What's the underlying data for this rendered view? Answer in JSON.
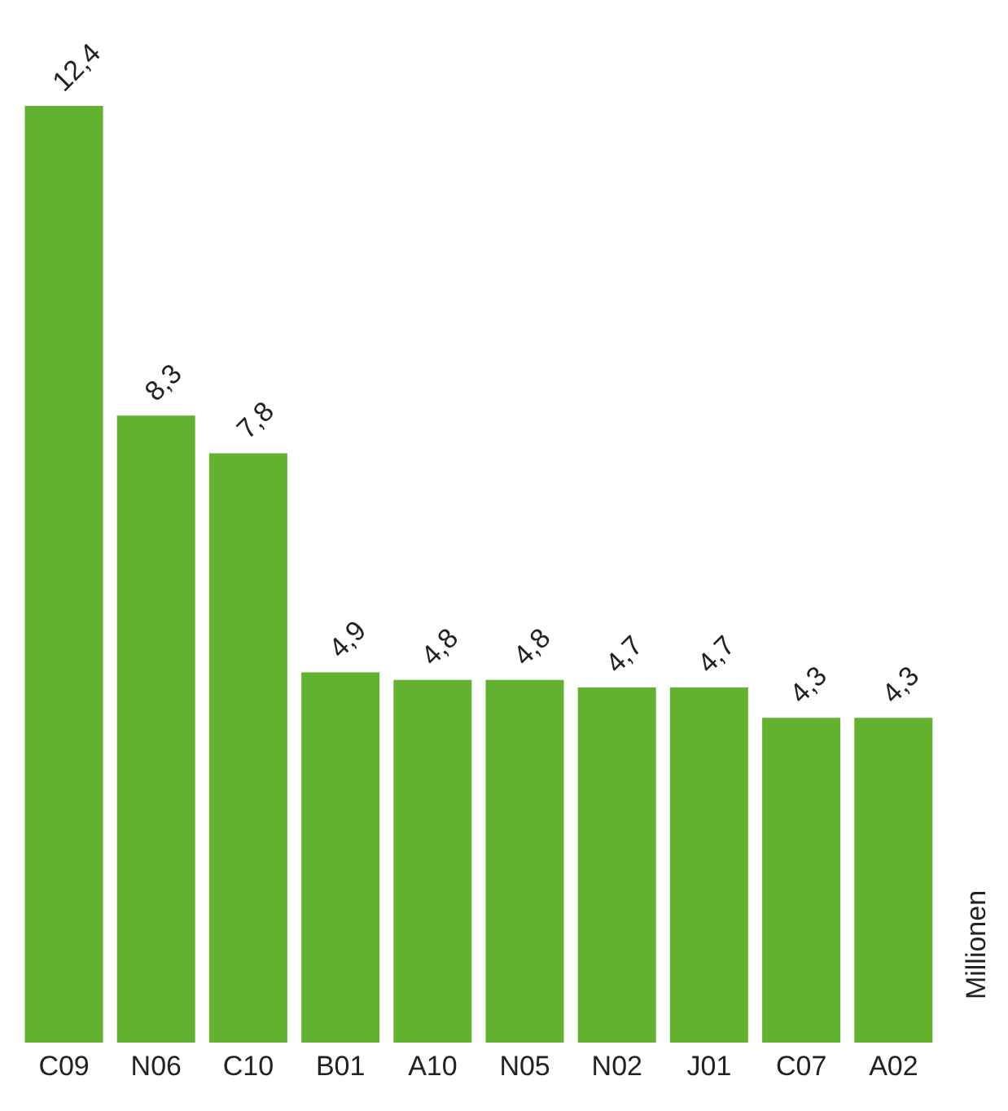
{
  "chart_data": {
    "type": "bar",
    "ylabel": "Millionen",
    "categories": [
      "C09",
      "N06",
      "C10",
      "B01",
      "A10",
      "N05",
      "N02",
      "J01",
      "C07",
      "A02"
    ],
    "values": [
      12.4,
      8.3,
      7.8,
      4.9,
      4.8,
      4.8,
      4.7,
      4.7,
      4.3,
      4.3
    ],
    "value_labels": [
      "12,4",
      "8,3",
      "7,8",
      "4,9",
      "4,8",
      "4,8",
      "4,7",
      "4,7",
      "4,3",
      "4,3"
    ],
    "color": "#63b22f",
    "ylim": [
      0,
      12.4
    ],
    "grid": false,
    "legend": false
  }
}
